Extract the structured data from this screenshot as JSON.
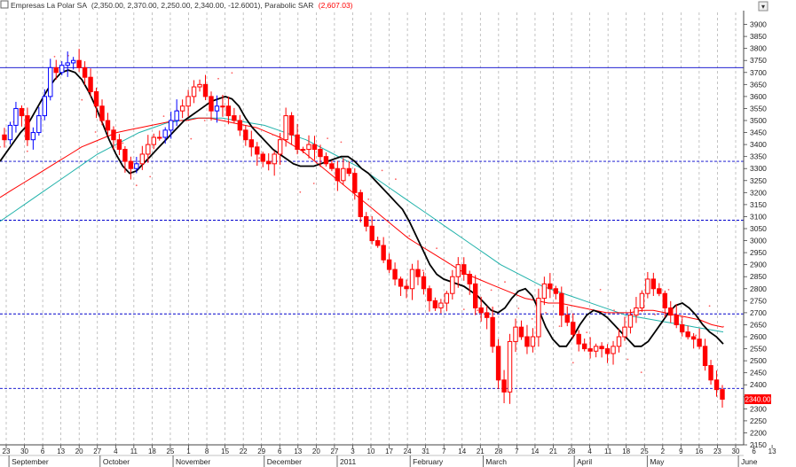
{
  "legend": {
    "name": "Empresas La Polar SA",
    "ohlc": "(2,350.00, 2,370.00, 2,250.00, 2,340.00, -12.6001)",
    "sar_label": "Parabolic SAR",
    "sar_value": "(2,607.03)"
  },
  "colors": {
    "up": "#0000ff",
    "down": "#ff0000",
    "ma_fast": "#000000",
    "ma_mid": "#ff0000",
    "ma_slow": "#20b2aa",
    "sar": "#ff6060",
    "hline": "#0000cc",
    "grid": "#aaaaaa",
    "last_tag": "#ff0000"
  },
  "chart_data": {
    "type": "candlestick",
    "title": "Empresas La Polar SA",
    "ylim": [
      2150,
      3950
    ],
    "yticks": [
      2150,
      2200,
      2250,
      2300,
      2350,
      2400,
      2450,
      2500,
      2550,
      2600,
      2650,
      2700,
      2750,
      2800,
      2850,
      2900,
      2950,
      3000,
      3050,
      3100,
      3150,
      3200,
      3250,
      3300,
      3350,
      3400,
      3450,
      3500,
      3550,
      3600,
      3650,
      3700,
      3750,
      3800,
      3850,
      3900
    ],
    "x_day_labels": [
      "23",
      "30",
      "6",
      "13",
      "20",
      "27",
      "4",
      "11",
      "18",
      "25",
      "1",
      "8",
      "15",
      "22",
      "29",
      "6",
      "13",
      "20",
      "27",
      "3",
      "10",
      "17",
      "24",
      "31",
      "7",
      "14",
      "21",
      "28",
      "7",
      "14",
      "21",
      "28",
      "4",
      "11",
      "18",
      "25",
      "2",
      "9",
      "16",
      "23",
      "30",
      "6",
      "13"
    ],
    "x_month_labels": [
      "September",
      "October",
      "November",
      "December",
      "2011",
      "February",
      "March",
      "April",
      "May",
      "June"
    ],
    "month_label_index": [
      1,
      6,
      10,
      15,
      19,
      23,
      27,
      32,
      36,
      41
    ],
    "horizontal_levels": [
      3720,
      3330,
      3085,
      2695,
      2385
    ],
    "last_value_label": "2340.00",
    "last_value": 2340,
    "series": [
      {
        "name": "Price",
        "closes": [
          3420,
          3480,
          3550,
          3520,
          3420,
          3450,
          3520,
          3600,
          3720,
          3700,
          3730,
          3740,
          3750,
          3720,
          3680,
          3620,
          3560,
          3500,
          3460,
          3420,
          3380,
          3330,
          3300,
          3320,
          3360,
          3400,
          3430,
          3430,
          3460,
          3500,
          3540,
          3560,
          3600,
          3640,
          3650,
          3600,
          3540,
          3560,
          3560,
          3520,
          3500,
          3460,
          3420,
          3390,
          3360,
          3330,
          3320,
          3360,
          3420,
          3520,
          3440,
          3380,
          3380,
          3400,
          3380,
          3350,
          3320,
          3300,
          3250,
          3300,
          3280,
          3200,
          3100,
          3060,
          3000,
          2980,
          2920,
          2880,
          2840,
          2810,
          2800,
          2880,
          2850,
          2800,
          2750,
          2720,
          2740,
          2780,
          2850,
          2900,
          2860,
          2820,
          2720,
          2700,
          2680,
          2560,
          2420,
          2370,
          2580,
          2640,
          2600,
          2560,
          2600,
          2760,
          2820,
          2800,
          2780,
          2690,
          2660,
          2610,
          2570,
          2550,
          2540,
          2560,
          2550,
          2530,
          2560,
          2600,
          2640,
          2690,
          2720,
          2780,
          2840,
          2800,
          2780,
          2720,
          2690,
          2650,
          2620,
          2600,
          2590,
          2560,
          2480,
          2420,
          2380,
          2340
        ]
      },
      {
        "name": "MA fast",
        "values": [
          3330,
          3370,
          3410,
          3450,
          3480,
          3530,
          3580,
          3630,
          3670,
          3700,
          3710,
          3700,
          3670,
          3620,
          3560,
          3490,
          3420,
          3360,
          3310,
          3280,
          3290,
          3320,
          3350,
          3380,
          3410,
          3440,
          3470,
          3500,
          3520,
          3540,
          3560,
          3580,
          3590,
          3600,
          3590,
          3560,
          3510,
          3470,
          3440,
          3410,
          3380,
          3360,
          3340,
          3320,
          3310,
          3310,
          3310,
          3320,
          3330,
          3340,
          3350,
          3350,
          3330,
          3300,
          3280,
          3250,
          3220,
          3190,
          3160,
          3130,
          3080,
          3020,
          2960,
          2900,
          2860,
          2840,
          2830,
          2820,
          2810,
          2790,
          2770,
          2740,
          2710,
          2700,
          2720,
          2760,
          2790,
          2800,
          2770,
          2710,
          2640,
          2590,
          2560,
          2560,
          2600,
          2650,
          2690,
          2710,
          2700,
          2680,
          2650,
          2620,
          2590,
          2560,
          2560,
          2580,
          2620,
          2660,
          2700,
          2730,
          2740,
          2720,
          2690,
          2650,
          2620,
          2600,
          2570
        ]
      },
      {
        "name": "MA mid",
        "values": [
          3180,
          3210,
          3240,
          3270,
          3300,
          3330,
          3360,
          3390,
          3410,
          3430,
          3450,
          3460,
          3470,
          3480,
          3490,
          3500,
          3500,
          3510,
          3510,
          3500,
          3490,
          3480,
          3470,
          3450,
          3430,
          3400,
          3370,
          3330,
          3290,
          3250,
          3210,
          3170,
          3130,
          3090,
          3050,
          3010,
          2980,
          2950,
          2920,
          2890,
          2860,
          2840,
          2820,
          2800,
          2780,
          2760,
          2750,
          2740,
          2740,
          2730,
          2720,
          2710,
          2700,
          2700,
          2700,
          2710,
          2710,
          2700,
          2690,
          2680,
          2670,
          2650,
          2640
        ]
      },
      {
        "name": "MA slow",
        "values": [
          3080,
          3120,
          3160,
          3200,
          3240,
          3280,
          3320,
          3360,
          3390,
          3420,
          3450,
          3470,
          3490,
          3500,
          3510,
          3510,
          3510,
          3500,
          3490,
          3480,
          3460,
          3440,
          3420,
          3390,
          3360,
          3330,
          3300,
          3260,
          3220,
          3180,
          3140,
          3100,
          3060,
          3020,
          2980,
          2940,
          2900,
          2870,
          2840,
          2810,
          2790,
          2770,
          2750,
          2730,
          2710,
          2690,
          2680,
          2670,
          2660,
          2650,
          2640,
          2630,
          2620
        ]
      }
    ]
  }
}
